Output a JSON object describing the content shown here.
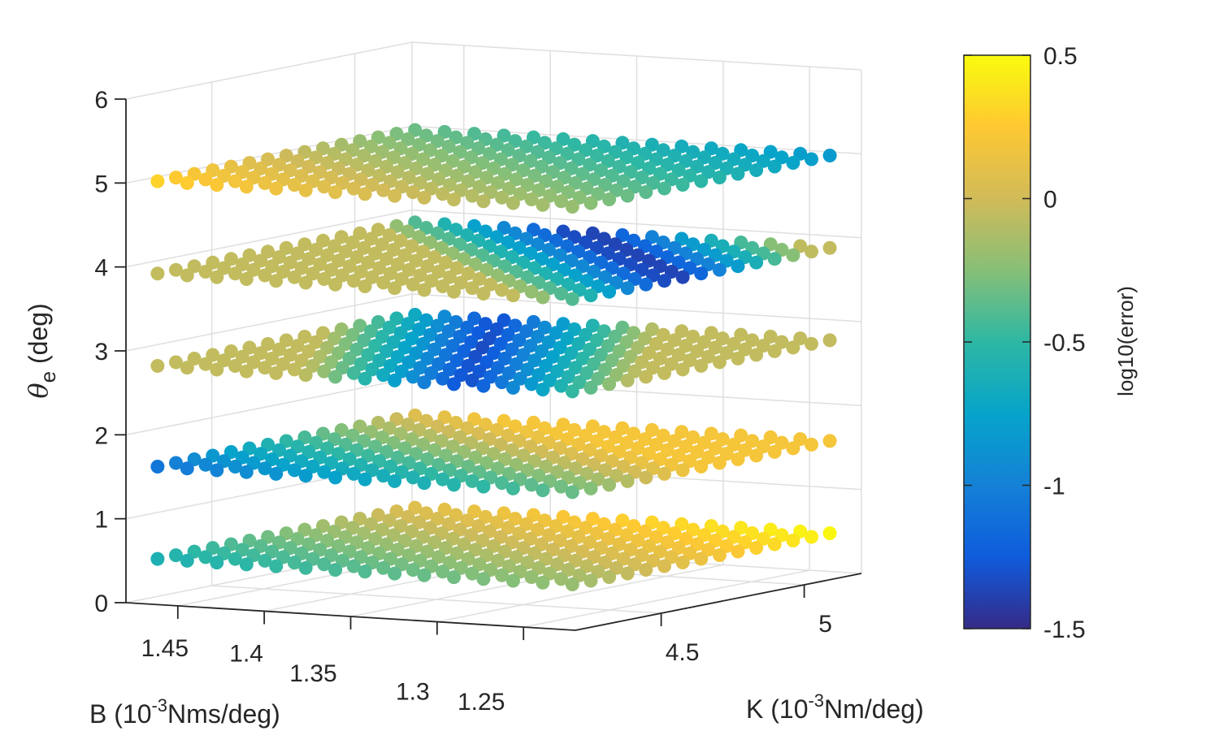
{
  "chart_data": {
    "type": "scatter",
    "subtype": "3d-scatter",
    "zlabel_symbol": "θ",
    "zlabel_sub": "e",
    "zlabel_unit": " (deg)",
    "xlabel_prefix": "B (10",
    "xlabel_exp": "-3",
    "xlabel_suffix": "Nms/deg)",
    "ylabel_prefix": "K (10",
    "ylabel_exp": "-3",
    "ylabel_suffix": "Nm/deg)",
    "colorbar_label": "log10(error)",
    "colormap": "parula",
    "clim": [
      -1.5,
      0.5
    ],
    "z_ticks": [
      "0",
      "1",
      "2",
      "3",
      "4",
      "5",
      "6"
    ],
    "z_range": [
      0,
      6
    ],
    "b_ticks": [
      "1.45",
      "1.4",
      "1.35",
      "1.3",
      "1.25"
    ],
    "b_range": [
      1.22,
      1.48
    ],
    "k_ticks": [
      "4.5",
      "5"
    ],
    "k_range": [
      4.2,
      5.2
    ],
    "colorbar_ticks": [
      "0.5",
      "0",
      "-0.5",
      "-1",
      "-1.5"
    ],
    "theta_levels": [
      0.5,
      1.6,
      2.8,
      3.9,
      5.0
    ],
    "grid_B_range": [
      1.23,
      1.47
    ],
    "grid_K_range": [
      4.25,
      5.15
    ],
    "grid_size": [
      15,
      15
    ],
    "layers": [
      {
        "theta_e": 0.5,
        "min_error_log10": -0.6,
        "min_location": "high B, low K",
        "max_error_log10": 0.3
      },
      {
        "theta_e": 1.6,
        "min_error_log10": -1.2,
        "min_location": "high B, low K",
        "max_error_log10": 0.2
      },
      {
        "theta_e": 2.8,
        "min_error_log10": -1.4,
        "min_location": "mid B, low K",
        "max_error_log10": 0.0
      },
      {
        "theta_e": 3.9,
        "min_error_log10": -1.5,
        "min_location": "low B, mid K",
        "max_error_log10": -0.05
      },
      {
        "theta_e": 5.0,
        "min_error_log10": -0.6,
        "min_location": "low B, high K",
        "max_error_log10": 0.3
      }
    ]
  }
}
